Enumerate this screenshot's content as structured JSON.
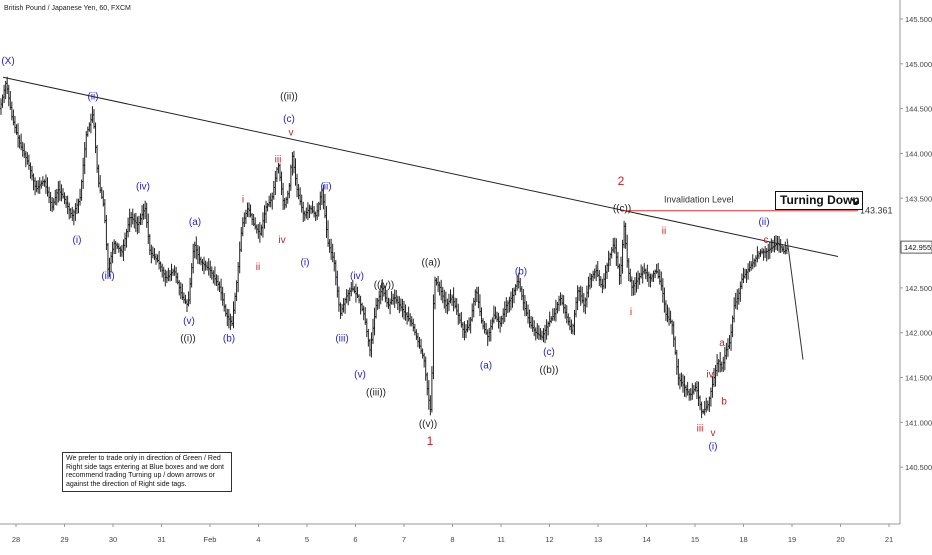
{
  "header": {
    "title": "British Pound / Japanese Yen, 60, FXCM"
  },
  "chart_data": {
    "type": "ohlc-bars",
    "title": "British Pound / Japanese Yen, 60, FXCM",
    "xlabel": "",
    "ylabel": "",
    "ylim": [
      140.0,
      145.6
    ],
    "y_ticks": [
      "140.500",
      "141.000",
      "141.500",
      "142.000",
      "142.500",
      "143.000",
      "143.500",
      "144.000",
      "144.500",
      "145.000",
      "145.500"
    ],
    "x_ticks": [
      "28",
      "29",
      "30",
      "31",
      "Feb",
      "4",
      "5",
      "6",
      "7",
      "8",
      "11",
      "12",
      "13",
      "14",
      "15",
      "18",
      "19",
      "20",
      "21"
    ],
    "current_price": "142.955",
    "price_path": [
      [
        0,
        144.5
      ],
      [
        6,
        144.8
      ],
      [
        12,
        144.4
      ],
      [
        20,
        144.1
      ],
      [
        28,
        143.9
      ],
      [
        36,
        143.6
      ],
      [
        44,
        143.7
      ],
      [
        52,
        143.4
      ],
      [
        58,
        143.6
      ],
      [
        64,
        143.5
      ],
      [
        72,
        143.3
      ],
      [
        80,
        143.5
      ],
      [
        86,
        144.2
      ],
      [
        93,
        144.45
      ],
      [
        98,
        143.7
      ],
      [
        104,
        143.4
      ],
      [
        108,
        142.7
      ],
      [
        114,
        143.0
      ],
      [
        122,
        142.9
      ],
      [
        130,
        143.3
      ],
      [
        138,
        143.2
      ],
      [
        145,
        143.4
      ],
      [
        150,
        142.9
      ],
      [
        158,
        142.8
      ],
      [
        166,
        142.6
      ],
      [
        174,
        142.7
      ],
      [
        182,
        142.4
      ],
      [
        188,
        142.3
      ],
      [
        194,
        143.0
      ],
      [
        200,
        142.8
      ],
      [
        210,
        142.7
      ],
      [
        220,
        142.5
      ],
      [
        226,
        142.2
      ],
      [
        232,
        142.1
      ],
      [
        237,
        142.6
      ],
      [
        242,
        143.2
      ],
      [
        248,
        143.4
      ],
      [
        254,
        143.2
      ],
      [
        260,
        143.1
      ],
      [
        266,
        143.4
      ],
      [
        272,
        143.5
      ],
      [
        278,
        143.9
      ],
      [
        284,
        143.4
      ],
      [
        289,
        143.6
      ],
      [
        292,
        144.0
      ],
      [
        297,
        143.6
      ],
      [
        304,
        143.3
      ],
      [
        310,
        143.4
      ],
      [
        316,
        143.3
      ],
      [
        322,
        143.6
      ],
      [
        328,
        143.0
      ],
      [
        334,
        142.8
      ],
      [
        340,
        142.2
      ],
      [
        346,
        142.4
      ],
      [
        352,
        142.5
      ],
      [
        358,
        142.4
      ],
      [
        364,
        142.2
      ],
      [
        370,
        141.8
      ],
      [
        376,
        142.3
      ],
      [
        382,
        142.5
      ],
      [
        388,
        142.3
      ],
      [
        394,
        142.4
      ],
      [
        400,
        142.3
      ],
      [
        406,
        142.2
      ],
      [
        412,
        142.1
      ],
      [
        418,
        141.9
      ],
      [
        424,
        141.7
      ],
      [
        428,
        141.3
      ],
      [
        431,
        141.1
      ],
      [
        434,
        142.6
      ],
      [
        440,
        142.5
      ],
      [
        446,
        142.3
      ],
      [
        452,
        142.4
      ],
      [
        458,
        142.2
      ],
      [
        464,
        142.0
      ],
      [
        470,
        142.1
      ],
      [
        476,
        142.5
      ],
      [
        482,
        142.1
      ],
      [
        488,
        141.95
      ],
      [
        494,
        142.2
      ],
      [
        500,
        142.1
      ],
      [
        506,
        142.3
      ],
      [
        512,
        142.4
      ],
      [
        518,
        142.6
      ],
      [
        524,
        142.3
      ],
      [
        530,
        142.1
      ],
      [
        536,
        142.0
      ],
      [
        542,
        141.95
      ],
      [
        548,
        142.1
      ],
      [
        554,
        142.2
      ],
      [
        560,
        142.4
      ],
      [
        566,
        142.2
      ],
      [
        572,
        142.0
      ],
      [
        578,
        142.5
      ],
      [
        584,
        142.3
      ],
      [
        590,
        142.6
      ],
      [
        596,
        142.7
      ],
      [
        602,
        142.5
      ],
      [
        608,
        142.8
      ],
      [
        614,
        143.0
      ],
      [
        620,
        142.6
      ],
      [
        624,
        143.2
      ],
      [
        628,
        142.7
      ],
      [
        632,
        142.5
      ],
      [
        638,
        142.6
      ],
      [
        644,
        142.7
      ],
      [
        650,
        142.6
      ],
      [
        656,
        142.7
      ],
      [
        662,
        142.5
      ],
      [
        666,
        142.2
      ],
      [
        672,
        142.1
      ],
      [
        678,
        141.5
      ],
      [
        684,
        141.4
      ],
      [
        690,
        141.3
      ],
      [
        696,
        141.4
      ],
      [
        702,
        141.1
      ],
      [
        708,
        141.2
      ],
      [
        714,
        141.5
      ],
      [
        718,
        141.7
      ],
      [
        722,
        141.6
      ],
      [
        726,
        141.8
      ],
      [
        730,
        141.9
      ],
      [
        734,
        142.3
      ],
      [
        738,
        142.4
      ],
      [
        742,
        142.6
      ],
      [
        748,
        142.7
      ],
      [
        754,
        142.8
      ],
      [
        760,
        142.9
      ],
      [
        766,
        142.9
      ],
      [
        772,
        142.95
      ],
      [
        778,
        143.0
      ],
      [
        784,
        142.9
      ],
      [
        788,
        142.95
      ]
    ],
    "trendline": {
      "from": [
        3,
        144.85
      ],
      "to": [
        838,
        142.85
      ]
    },
    "invalidation": {
      "label": "Invalidation Level",
      "value": "143.361"
    },
    "forecast_path": {
      "from": [
        787,
        143.05
      ],
      "to": [
        803,
        141.7
      ]
    },
    "wave_labels": [
      {
        "text": "(X)",
        "color": "#2323c8",
        "x": 8,
        "y": 145.0
      },
      {
        "text": "(ii)",
        "color": "#2323c8",
        "x": 93,
        "y": 144.6
      },
      {
        "text": "(i)",
        "color": "#2323c8",
        "x": 77,
        "y": 143.0
      },
      {
        "text": "(iv)",
        "color": "#2323c8",
        "x": 143,
        "y": 143.6
      },
      {
        "text": "(iii)",
        "color": "#2323c8",
        "x": 108,
        "y": 142.6
      },
      {
        "text": "(a)",
        "color": "#2323c8",
        "x": 195,
        "y": 143.2
      },
      {
        "text": "(v)",
        "color": "#2323c8",
        "x": 189,
        "y": 142.1
      },
      {
        "text": "((i))",
        "color": "#222222",
        "x": 188,
        "y": 141.9
      },
      {
        "text": "(b)",
        "color": "#2323c8",
        "x": 229,
        "y": 141.9
      },
      {
        "text": "i",
        "color": "#c81e1e",
        "x": 243,
        "y": 143.45
      },
      {
        "text": "ii",
        "color": "#c81e1e",
        "x": 258,
        "y": 142.7
      },
      {
        "text": "iii",
        "color": "#c81e1e",
        "x": 278,
        "y": 143.9
      },
      {
        "text": "iv",
        "color": "#c81e1e",
        "x": 282,
        "y": 143.0
      },
      {
        "text": "v",
        "color": "#c81e1e",
        "x": 291,
        "y": 144.2
      },
      {
        "text": "(c)",
        "color": "#2323c8",
        "x": 289,
        "y": 144.35
      },
      {
        "text": "((ii))",
        "color": "#222222",
        "x": 289,
        "y": 144.6
      },
      {
        "text": "(i)",
        "color": "#2323c8",
        "x": 305,
        "y": 142.75
      },
      {
        "text": "(ii)",
        "color": "#2323c8",
        "x": 326,
        "y": 143.6
      },
      {
        "text": "(iii)",
        "color": "#2323c8",
        "x": 342,
        "y": 141.9
      },
      {
        "text": "(iv)",
        "color": "#2323c8",
        "x": 357,
        "y": 142.6
      },
      {
        "text": "((iv))",
        "color": "#222222",
        "x": 384,
        "y": 142.5
      },
      {
        "text": "(v)",
        "color": "#2323c8",
        "x": 360,
        "y": 141.5
      },
      {
        "text": "((iii))",
        "color": "#222222",
        "x": 376,
        "y": 141.3
      },
      {
        "text": "((a))",
        "color": "#222222",
        "x": 431,
        "y": 142.75
      },
      {
        "text": "((v))",
        "color": "#222222",
        "x": 428,
        "y": 140.95
      },
      {
        "text": "1",
        "color": "#c81e1e",
        "x": 430,
        "y": 140.75
      },
      {
        "text": "(b)",
        "color": "#2323c8",
        "x": 521,
        "y": 142.65
      },
      {
        "text": "(a)",
        "color": "#2323c8",
        "x": 486,
        "y": 141.6
      },
      {
        "text": "(c)",
        "color": "#2323c8",
        "x": 549,
        "y": 141.75
      },
      {
        "text": "((b))",
        "color": "#222222",
        "x": 549,
        "y": 141.55
      },
      {
        "text": "2",
        "color": "#c81e1e",
        "x": 621,
        "y": 143.65
      },
      {
        "text": "((c))",
        "color": "#222222",
        "x": 622,
        "y": 143.35
      },
      {
        "text": "i",
        "color": "#c81e1e",
        "x": 631,
        "y": 142.2
      },
      {
        "text": "ii",
        "color": "#c81e1e",
        "x": 664,
        "y": 143.1
      },
      {
        "text": "iii",
        "color": "#c81e1e",
        "x": 700,
        "y": 140.9
      },
      {
        "text": "iv",
        "color": "#c81e1e",
        "x": 710,
        "y": 141.5
      },
      {
        "text": "v",
        "color": "#c81e1e",
        "x": 713,
        "y": 140.85
      },
      {
        "text": "(i)",
        "color": "#2323c8",
        "x": 713,
        "y": 140.7
      },
      {
        "text": "a",
        "color": "#c81e1e",
        "x": 722,
        "y": 141.85
      },
      {
        "text": "b",
        "color": "#c81e1e",
        "x": 724,
        "y": 141.2
      },
      {
        "text": "(ii)",
        "color": "#2323c8",
        "x": 764,
        "y": 143.2
      },
      {
        "text": "c",
        "color": "#c81e1e",
        "x": 766,
        "y": 143.0
      }
    ]
  },
  "callout": {
    "label": "Turning Down",
    "arrow": "↘"
  },
  "note": {
    "text": "We prefer to trade only in direction of Green / Red Right side tags entering at Blue boxes and we dont recommend trading Turning up / down arrows or against the direction of Right side tags."
  },
  "colors": {
    "bars": "#222222",
    "trendline": "#222222",
    "invalidation": "#e03030",
    "blue_labels": "#2323c8",
    "red_labels": "#c81e1e",
    "axis_text": "#444444"
  }
}
